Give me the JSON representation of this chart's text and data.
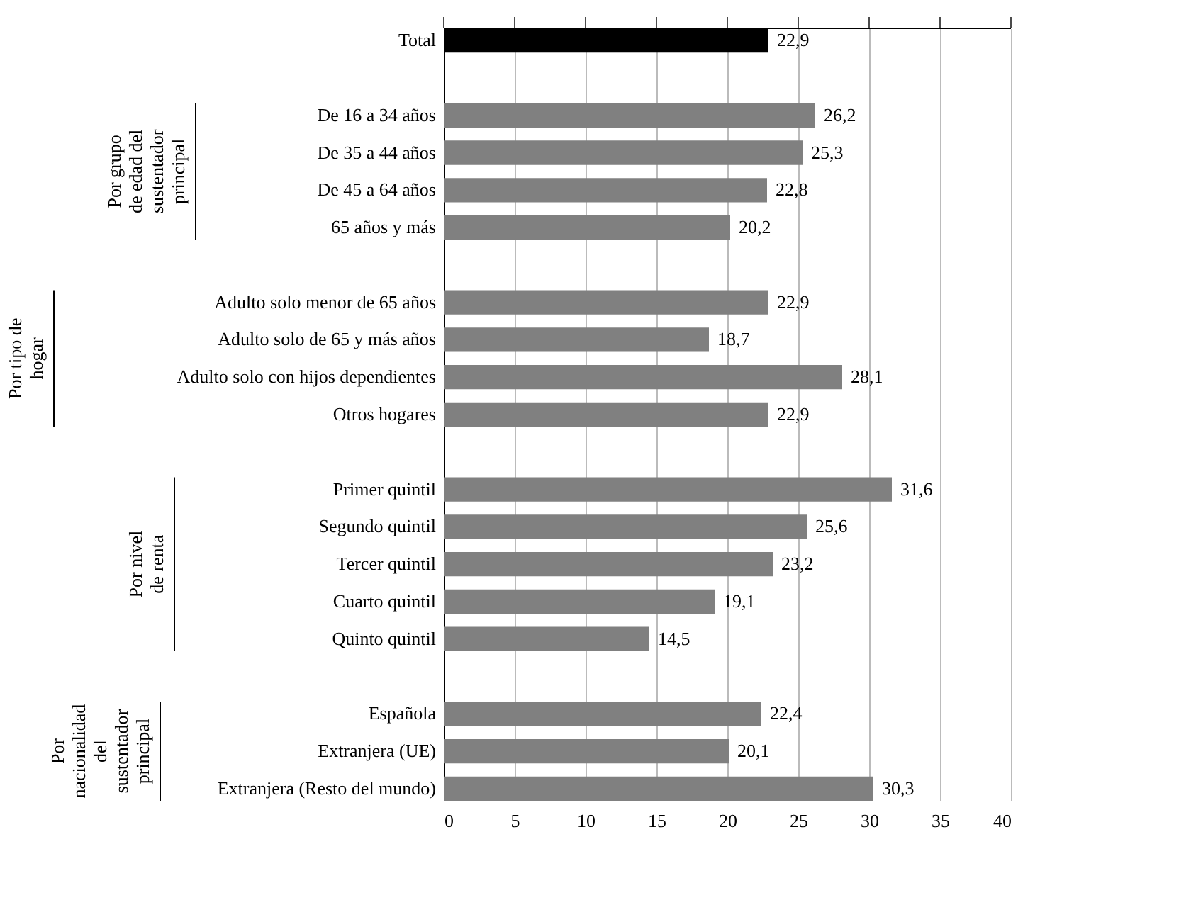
{
  "chart_data": {
    "type": "bar",
    "orientation": "horizontal",
    "categories": [
      "Total",
      null,
      "De 16 a 34 años",
      "De 35 a 44 años",
      "De 45 a 64 años",
      "65 años y más",
      null,
      "Adulto solo menor de 65 años",
      "Adulto solo de 65 y más años",
      "Adulto solo con hijos dependientes",
      "Otros hogares",
      null,
      "Primer quintil",
      "Segundo quintil",
      "Tercer quintil",
      "Cuarto quintil",
      "Quinto quintil",
      null,
      "Española",
      "Extranjera (UE)",
      "Extranjera (Resto del mundo)"
    ],
    "values": [
      22.9,
      null,
      26.2,
      25.3,
      22.8,
      20.2,
      null,
      22.9,
      18.7,
      28.1,
      22.9,
      null,
      31.6,
      25.6,
      23.2,
      19.1,
      14.5,
      null,
      22.4,
      20.1,
      30.3
    ],
    "colors": [
      "#000000",
      null,
      "#808080",
      "#808080",
      "#808080",
      "#808080",
      null,
      "#808080",
      "#808080",
      "#808080",
      "#808080",
      null,
      "#808080",
      "#808080",
      "#808080",
      "#808080",
      "#808080",
      null,
      "#808080",
      "#808080",
      "#808080"
    ],
    "xlim": [
      0,
      40
    ],
    "xticks": [
      0,
      5,
      10,
      15,
      20,
      25,
      30,
      35,
      40
    ],
    "grid": "x",
    "value_labels": [
      "22,9",
      null,
      "26,2",
      "25,3",
      "22,8",
      "20,2",
      null,
      "22,9",
      "18,7",
      "28,1",
      "22,9",
      null,
      "31,6",
      "25,6",
      "23,2",
      "19,1",
      "14,5",
      null,
      "22,4",
      "20,1",
      "30,3"
    ],
    "annotations": [
      "Por grupo de edad del sustentador principal",
      "Por tipo de hogar",
      "Por nivel de renta",
      "Por nacionalidad del sustentador principal"
    ]
  }
}
